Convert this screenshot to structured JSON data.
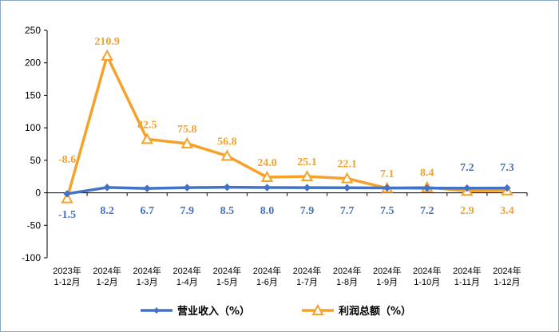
{
  "chart_data": {
    "type": "line",
    "title": "",
    "xlabel": "",
    "ylabel": "",
    "ylim": [
      -100,
      250
    ],
    "yticks": [
      -100,
      -50,
      0,
      50,
      100,
      150,
      200,
      250
    ],
    "ytick_labels": [
      "-100",
      "-50",
      "0",
      "50",
      "100",
      "150",
      "200",
      "250"
    ],
    "categories": [
      [
        "2023年",
        "1-12月"
      ],
      [
        "2024年",
        "1-2月"
      ],
      [
        "2024年",
        "1-3月"
      ],
      [
        "2024年",
        "1-4月"
      ],
      [
        "2024年",
        "1-5月"
      ],
      [
        "2024年",
        "1-6月"
      ],
      [
        "2024年",
        "1-7月"
      ],
      [
        "2024年",
        "1-8月"
      ],
      [
        "2024年",
        "1-9月"
      ],
      [
        "2024年",
        "1-10月"
      ],
      [
        "2024年",
        "1-11月"
      ],
      [
        "2024年",
        "1-12月"
      ]
    ],
    "grid": false,
    "legend_position": "bottom",
    "series": [
      {
        "name": "营业收入（%）",
        "color": "#4472c4",
        "marker": "diamond",
        "values": [
          -1.5,
          8.2,
          6.7,
          7.9,
          8.5,
          8.0,
          7.9,
          7.7,
          7.5,
          7.2,
          7.2,
          7.3
        ],
        "labels": [
          "-1.5",
          "8.2",
          "6.7",
          "7.9",
          "8.5",
          "8.0",
          "7.9",
          "7.7",
          "7.5",
          "7.2",
          "7.2",
          "7.3"
        ]
      },
      {
        "name": "利润总额（%）",
        "color": "#f4a22a",
        "marker": "triangle",
        "values": [
          -8.6,
          210.9,
          82.5,
          75.8,
          56.8,
          24.0,
          25.1,
          22.1,
          7.1,
          8.4,
          2.9,
          3.4
        ],
        "labels": [
          "-8.6",
          "210.9",
          "82.5",
          "75.8",
          "56.8",
          "24.0",
          "25.1",
          "22.1",
          "7.1",
          "8.4",
          "2.9",
          "3.4"
        ]
      }
    ]
  }
}
